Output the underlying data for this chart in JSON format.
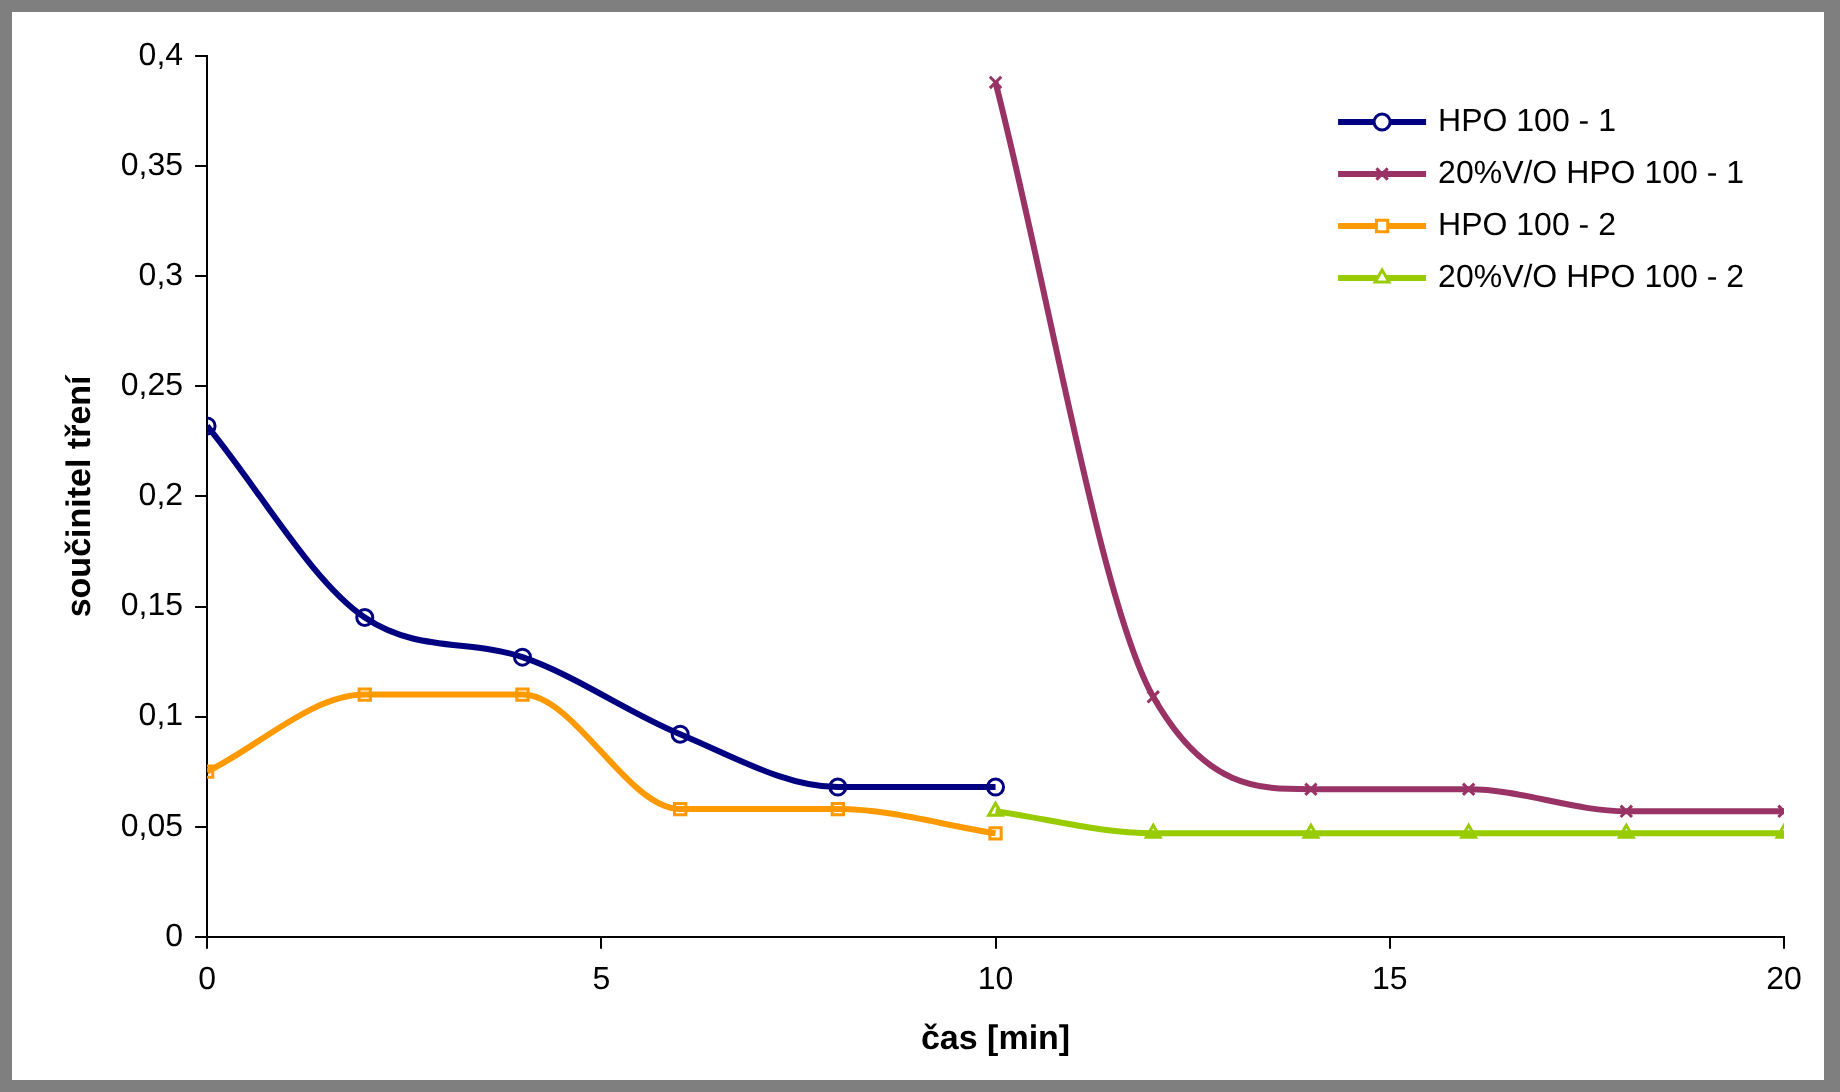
{
  "chart_data": {
    "type": "line",
    "xlabel": "čas [min]",
    "ylabel": "součinitel tření",
    "xlim": [
      0,
      20
    ],
    "xticks": [
      0,
      5,
      10,
      15,
      20
    ],
    "ylim": [
      0,
      0.4
    ],
    "yticks": [
      0,
      {
        "value": 0.05,
        "label": "0,05"
      },
      {
        "value": 0.1,
        "label": "0,1"
      },
      {
        "value": 0.15,
        "label": "0,15"
      },
      {
        "value": 0.2,
        "label": "0,2"
      },
      {
        "value": 0.25,
        "label": "0,25"
      },
      {
        "value": 0.3,
        "label": "0,3"
      },
      {
        "value": 0.35,
        "label": "0,35"
      },
      {
        "value": 0.4,
        "label": "0,4"
      }
    ],
    "grid": false,
    "legend": "top right",
    "series": [
      {
        "name": "HPO 100 - 1",
        "color": "#000080",
        "marker": "circle",
        "x": [
          0,
          2,
          4,
          6,
          8,
          10
        ],
        "values": [
          0.232,
          0.145,
          0.127,
          0.092,
          0.068,
          0.068
        ]
      },
      {
        "name": "20%V/O HPO 100 - 1",
        "color": "#993366",
        "marker": "cross",
        "x": [
          10,
          12,
          14,
          16,
          18,
          20
        ],
        "values": [
          0.388,
          0.109,
          0.067,
          0.067,
          0.057,
          0.057
        ]
      },
      {
        "name": "HPO 100 - 2",
        "color": "#ff9900",
        "marker": "square",
        "x": [
          0,
          2,
          4,
          6,
          8,
          10
        ],
        "values": [
          0.075,
          0.11,
          0.11,
          0.058,
          0.058,
          0.047
        ]
      },
      {
        "name": "20%V/O HPO 100 - 2",
        "color": "#99cc00",
        "marker": "triangle",
        "x": [
          10,
          12,
          14,
          16,
          18,
          20
        ],
        "values": [
          0.057,
          0.047,
          0.047,
          0.047,
          0.047,
          0.047
        ]
      }
    ]
  }
}
